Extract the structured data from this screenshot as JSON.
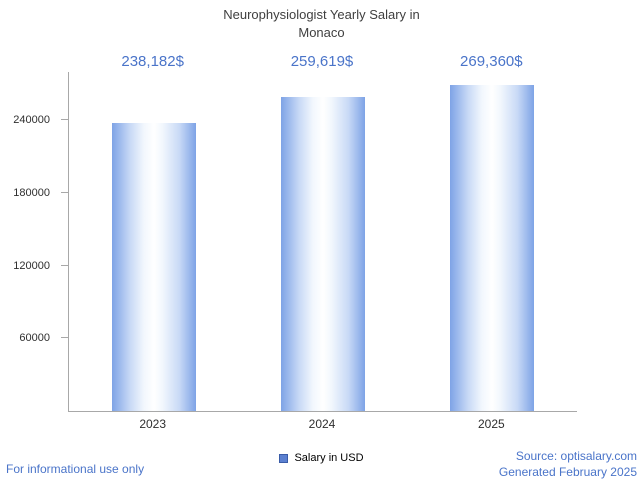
{
  "chart_data": {
    "type": "bar",
    "title": "Neurophysiologist Yearly Salary in Monaco",
    "categories": [
      "2023",
      "2024",
      "2025"
    ],
    "values": [
      238182,
      259619,
      269360
    ],
    "value_labels": [
      "238,182$",
      "259,619$",
      "269,360$"
    ],
    "series_name": "Salary in USD",
    "xlabel": "",
    "ylabel": "",
    "ylim": [
      0,
      280000
    ],
    "yticks": [
      60000,
      120000,
      180000,
      240000
    ],
    "ytick_labels": [
      "60000",
      "120000",
      "180000",
      "240000"
    ],
    "grid": false,
    "legend_position": "bottom-center",
    "colors": {
      "accent_text": "#4a74c9",
      "bar_edge": "#7ea3e6",
      "bar_center": "#ffffff",
      "axis": "#a8a8a8",
      "title_text": "#3f3f3f"
    }
  },
  "legend": {
    "label": "Salary in USD"
  },
  "footer": {
    "disclaimer": "For informational use only",
    "source": "Source: optisalary.com",
    "generated": "Generated February 2025"
  }
}
